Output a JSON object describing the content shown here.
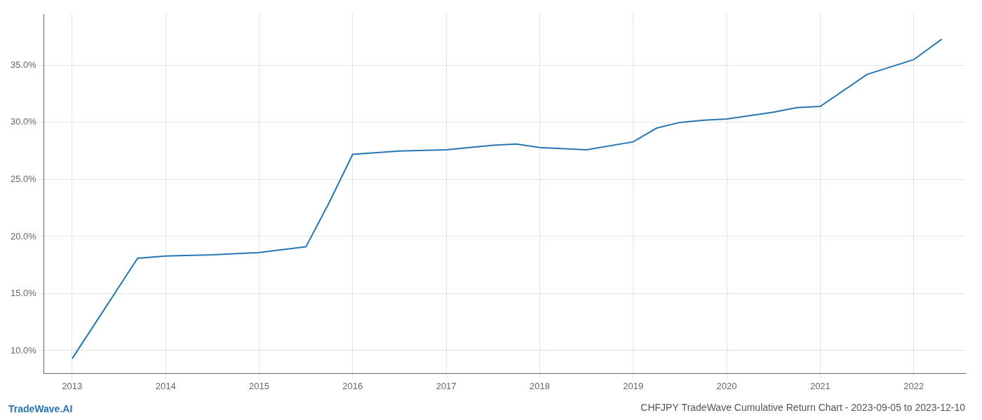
{
  "chart_data": {
    "type": "line",
    "title": "CHFJPY TradeWave Cumulative Return Chart - 2023-09-05 to 2023-12-10",
    "annotations": [
      "TradeWave.AI"
    ],
    "x": [
      2013.0,
      2013.7,
      2014.0,
      2014.5,
      2015.0,
      2015.5,
      2015.75,
      2016.0,
      2016.5,
      2017.0,
      2017.5,
      2017.75,
      2018.0,
      2018.5,
      2019.0,
      2019.25,
      2019.5,
      2019.75,
      2020.0,
      2020.5,
      2020.75,
      2021.0,
      2021.5,
      2022.0,
      2022.3
    ],
    "values": [
      9.3,
      18.1,
      18.3,
      18.4,
      18.6,
      19.1,
      23.0,
      27.2,
      27.5,
      27.6,
      28.0,
      28.1,
      27.8,
      27.6,
      28.3,
      29.5,
      30.0,
      30.2,
      30.3,
      30.9,
      31.3,
      31.4,
      34.2,
      35.5,
      37.3
    ],
    "color": "#2777b4",
    "xlim": [
      2012.7,
      2022.55
    ],
    "ylim": [
      8.0,
      39.5
    ],
    "xticks": [
      2013,
      2014,
      2015,
      2016,
      2017,
      2018,
      2019,
      2020,
      2021,
      2022
    ],
    "yticks": [
      {
        "value": 10.0,
        "label": "10.0%"
      },
      {
        "value": 15.0,
        "label": "15.0%"
      },
      {
        "value": 20.0,
        "label": "20.0%"
      },
      {
        "value": 25.0,
        "label": "25.0%"
      },
      {
        "value": 30.0,
        "label": "30.0%"
      },
      {
        "value": 35.0,
        "label": "35.0%"
      }
    ],
    "grid": true
  }
}
